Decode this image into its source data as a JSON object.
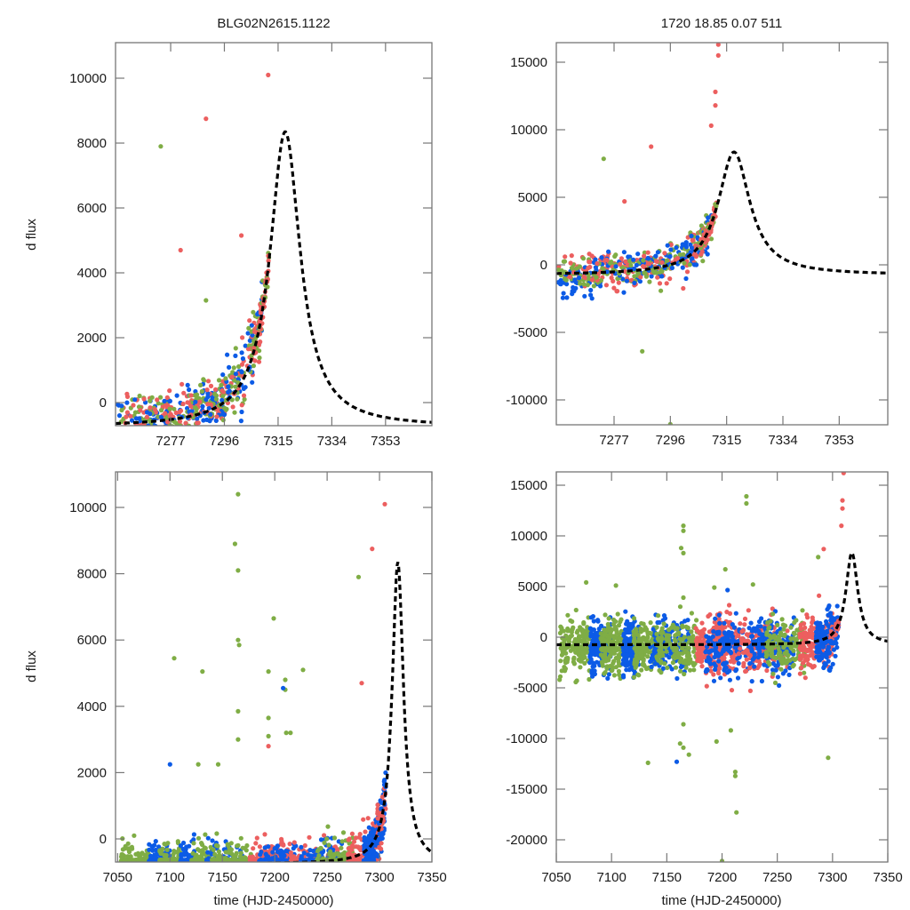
{
  "figure": {
    "title_left": "BLG02N2615.1122",
    "title_right": "1720  18.85  0.07  511"
  },
  "colors": {
    "green": "#7fad45",
    "blue": "#0c5be6",
    "red": "#ec5f5f",
    "model": "#000000",
    "frame": "#777777"
  },
  "model": {
    "description": "single-lens microlensing fit",
    "t0": 7317.5,
    "peak_dflux": 8350,
    "tE_like_width": 6.5,
    "baseline_zoom": -750,
    "baseline_full": -750
  },
  "chart_data": [
    {
      "id": "top-left",
      "type": "scatter",
      "title": "BLG02N2615.1122",
      "xlabel": "",
      "ylabel": "d flux",
      "xlim": [
        7257.5,
        7369.4
      ],
      "ylim": [
        -712,
        11096
      ],
      "xticks": [
        7277,
        7296,
        7315,
        7334,
        7353
      ],
      "xtick_labels": [
        "7277",
        "7296",
        "7315",
        "7334",
        "7353"
      ],
      "yticks": [
        0,
        2000,
        4000,
        6000,
        8000,
        10000
      ],
      "ytick_labels": [
        "0",
        "2000",
        "4000",
        "6000",
        "8000",
        "10000"
      ],
      "series": [
        {
          "name": "green",
          "color_key": "green"
        },
        {
          "name": "blue",
          "color_key": "blue"
        },
        {
          "name": "red",
          "color_key": "red"
        },
        {
          "name": "model",
          "color_key": "model",
          "style": "dashed"
        }
      ],
      "outliers": [
        {
          "series": "green",
          "x": 7273.5,
          "y": 7900
        },
        {
          "series": "red",
          "x": 7289.5,
          "y": 8750
        },
        {
          "series": "red",
          "x": 7280.5,
          "y": 4700
        },
        {
          "series": "red",
          "x": 7311.5,
          "y": 10100
        },
        {
          "series": "green",
          "x": 7289.5,
          "y": 3150
        },
        {
          "series": "red",
          "x": 7302,
          "y": 5150
        }
      ],
      "grid": false
    },
    {
      "id": "top-right",
      "type": "scatter",
      "title": "1720  18.85  0.07  511",
      "xlabel": "",
      "ylabel": "",
      "xlim": [
        7257.5,
        7369.4
      ],
      "ylim": [
        -11842,
        16447
      ],
      "xticks": [
        7277,
        7296,
        7315,
        7334,
        7353
      ],
      "xtick_labels": [
        "7277",
        "7296",
        "7315",
        "7334",
        "7353"
      ],
      "yticks": [
        -10000,
        -5000,
        0,
        5000,
        10000,
        15000
      ],
      "ytick_labels": [
        "-10000",
        "-5000",
        "0",
        "5000",
        "10000",
        "15000"
      ],
      "series": [
        {
          "name": "green",
          "color_key": "green"
        },
        {
          "name": "blue",
          "color_key": "blue"
        },
        {
          "name": "red",
          "color_key": "red"
        },
        {
          "name": "model",
          "color_key": "model",
          "style": "dashed"
        }
      ],
      "outliers": [
        {
          "series": "green",
          "x": 7273.5,
          "y": 7850
        },
        {
          "series": "red",
          "x": 7289.5,
          "y": 8750
        },
        {
          "series": "red",
          "x": 7280.5,
          "y": 4700
        },
        {
          "series": "red",
          "x": 7312.2,
          "y": 16300
        },
        {
          "series": "red",
          "x": 7312.2,
          "y": 15500
        },
        {
          "series": "red",
          "x": 7311.2,
          "y": 12800
        },
        {
          "series": "red",
          "x": 7311.2,
          "y": 11800
        },
        {
          "series": "red",
          "x": 7309.8,
          "y": 10300
        },
        {
          "series": "green",
          "x": 7286.5,
          "y": -6400
        },
        {
          "series": "green",
          "x": 7296,
          "y": -11800
        }
      ],
      "grid": false
    },
    {
      "id": "bottom-left",
      "type": "scatter",
      "title": "",
      "xlabel": "time (HJD-2450000)",
      "ylabel": "d flux",
      "xlim": [
        7048,
        7350
      ],
      "ylim": [
        -697,
        11072
      ],
      "xticks": [
        7050,
        7100,
        7150,
        7200,
        7250,
        7300,
        7350
      ],
      "xtick_labels": [
        "7050",
        "7100",
        "7150",
        "7200",
        "7250",
        "7300",
        "7350"
      ],
      "yticks": [
        0,
        2000,
        4000,
        6000,
        8000,
        10000
      ],
      "ytick_labels": [
        "0",
        "2000",
        "4000",
        "6000",
        "8000",
        "10000"
      ],
      "series": [
        {
          "name": "green",
          "color_key": "green"
        },
        {
          "name": "blue",
          "color_key": "blue"
        },
        {
          "name": "red",
          "color_key": "red"
        },
        {
          "name": "model",
          "color_key": "model",
          "style": "dashed"
        }
      ],
      "outliers": [
        {
          "series": "green",
          "x": 7165,
          "y": 10400
        },
        {
          "series": "green",
          "x": 7162,
          "y": 8900
        },
        {
          "series": "green",
          "x": 7165,
          "y": 8100
        },
        {
          "series": "green",
          "x": 7199,
          "y": 6650
        },
        {
          "series": "green",
          "x": 7165,
          "y": 6000
        },
        {
          "series": "green",
          "x": 7166,
          "y": 5850
        },
        {
          "series": "green",
          "x": 7104,
          "y": 5450
        },
        {
          "series": "green",
          "x": 7131,
          "y": 5050
        },
        {
          "series": "green",
          "x": 7194,
          "y": 5050
        },
        {
          "series": "green",
          "x": 7227,
          "y": 5100
        },
        {
          "series": "green",
          "x": 7210,
          "y": 4800
        },
        {
          "series": "green",
          "x": 7210,
          "y": 4500
        },
        {
          "series": "blue",
          "x": 7208,
          "y": 4550
        },
        {
          "series": "green",
          "x": 7165,
          "y": 3850
        },
        {
          "series": "green",
          "x": 7194,
          "y": 3650
        },
        {
          "series": "green",
          "x": 7211,
          "y": 3200
        },
        {
          "series": "green",
          "x": 7215,
          "y": 3200
        },
        {
          "series": "green",
          "x": 7194,
          "y": 3100
        },
        {
          "series": "red",
          "x": 7194,
          "y": 2800
        },
        {
          "series": "green",
          "x": 7165,
          "y": 3000
        },
        {
          "series": "blue",
          "x": 7100,
          "y": 2250
        },
        {
          "series": "green",
          "x": 7127,
          "y": 2250
        },
        {
          "series": "green",
          "x": 7146,
          "y": 2250
        },
        {
          "series": "red",
          "x": 7283,
          "y": 4700
        },
        {
          "series": "red",
          "x": 7293,
          "y": 8750
        },
        {
          "series": "green",
          "x": 7280,
          "y": 7900
        },
        {
          "series": "red",
          "x": 7305,
          "y": 10100
        }
      ],
      "grid": false
    },
    {
      "id": "bottom-right",
      "type": "scatter",
      "title": "",
      "xlabel": "time (HJD-2450000)",
      "ylabel": "",
      "xlim": [
        7050,
        7350
      ],
      "ylim": [
        -22193,
        16316
      ],
      "xticks": [
        7050,
        7100,
        7150,
        7200,
        7250,
        7300,
        7350
      ],
      "xtick_labels": [
        "7050",
        "7100",
        "7150",
        "7200",
        "7250",
        "7300",
        "7350"
      ],
      "yticks": [
        -20000,
        -15000,
        -10000,
        -5000,
        0,
        5000,
        10000,
        15000
      ],
      "ytick_labels": [
        "-20000",
        "-15000",
        "-10000",
        "-5000",
        "0",
        "5000",
        "10000",
        "15000"
      ],
      "series": [
        {
          "name": "green",
          "color_key": "green"
        },
        {
          "name": "blue",
          "color_key": "blue"
        },
        {
          "name": "red",
          "color_key": "red"
        },
        {
          "name": "model",
          "color_key": "model",
          "style": "dashed"
        }
      ],
      "outliers": [
        {
          "series": "green",
          "x": 7222,
          "y": 13900
        },
        {
          "series": "green",
          "x": 7222,
          "y": 13200
        },
        {
          "series": "green",
          "x": 7165,
          "y": 11000
        },
        {
          "series": "green",
          "x": 7165,
          "y": 10500
        },
        {
          "series": "green",
          "x": 7163,
          "y": 8800
        },
        {
          "series": "green",
          "x": 7165,
          "y": 8300
        },
        {
          "series": "red",
          "x": 7310,
          "y": 16200
        },
        {
          "series": "red",
          "x": 7309,
          "y": 13500
        },
        {
          "series": "red",
          "x": 7309,
          "y": 12700
        },
        {
          "series": "red",
          "x": 7308,
          "y": 11000
        },
        {
          "series": "red",
          "x": 7292,
          "y": 8700
        },
        {
          "series": "green",
          "x": 7287,
          "y": 7900
        },
        {
          "series": "green",
          "x": 7203,
          "y": 6700
        },
        {
          "series": "green",
          "x": 7077,
          "y": 5400
        },
        {
          "series": "green",
          "x": 7104,
          "y": 5100
        },
        {
          "series": "blue",
          "x": 7205,
          "y": 4650
        },
        {
          "series": "green",
          "x": 7193,
          "y": 4900
        },
        {
          "series": "green",
          "x": 7228,
          "y": 5200
        },
        {
          "series": "green",
          "x": 7165,
          "y": 3900
        },
        {
          "series": "green",
          "x": 7165,
          "y": -8600
        },
        {
          "series": "green",
          "x": 7162,
          "y": -10500
        },
        {
          "series": "green",
          "x": 7165,
          "y": -10900
        },
        {
          "series": "blue",
          "x": 7159,
          "y": -12300
        },
        {
          "series": "green",
          "x": 7133,
          "y": -12400
        },
        {
          "series": "green",
          "x": 7195,
          "y": -10300
        },
        {
          "series": "green",
          "x": 7208,
          "y": -9200
        },
        {
          "series": "green",
          "x": 7212,
          "y": -13300
        },
        {
          "series": "green",
          "x": 7212,
          "y": -13700
        },
        {
          "series": "green",
          "x": 7213,
          "y": -17300
        },
        {
          "series": "green",
          "x": 7296,
          "y": -11900
        },
        {
          "series": "green",
          "x": 7200,
          "y": -22100
        },
        {
          "series": "green",
          "x": 7170,
          "y": -11600
        }
      ],
      "grid": false
    }
  ]
}
